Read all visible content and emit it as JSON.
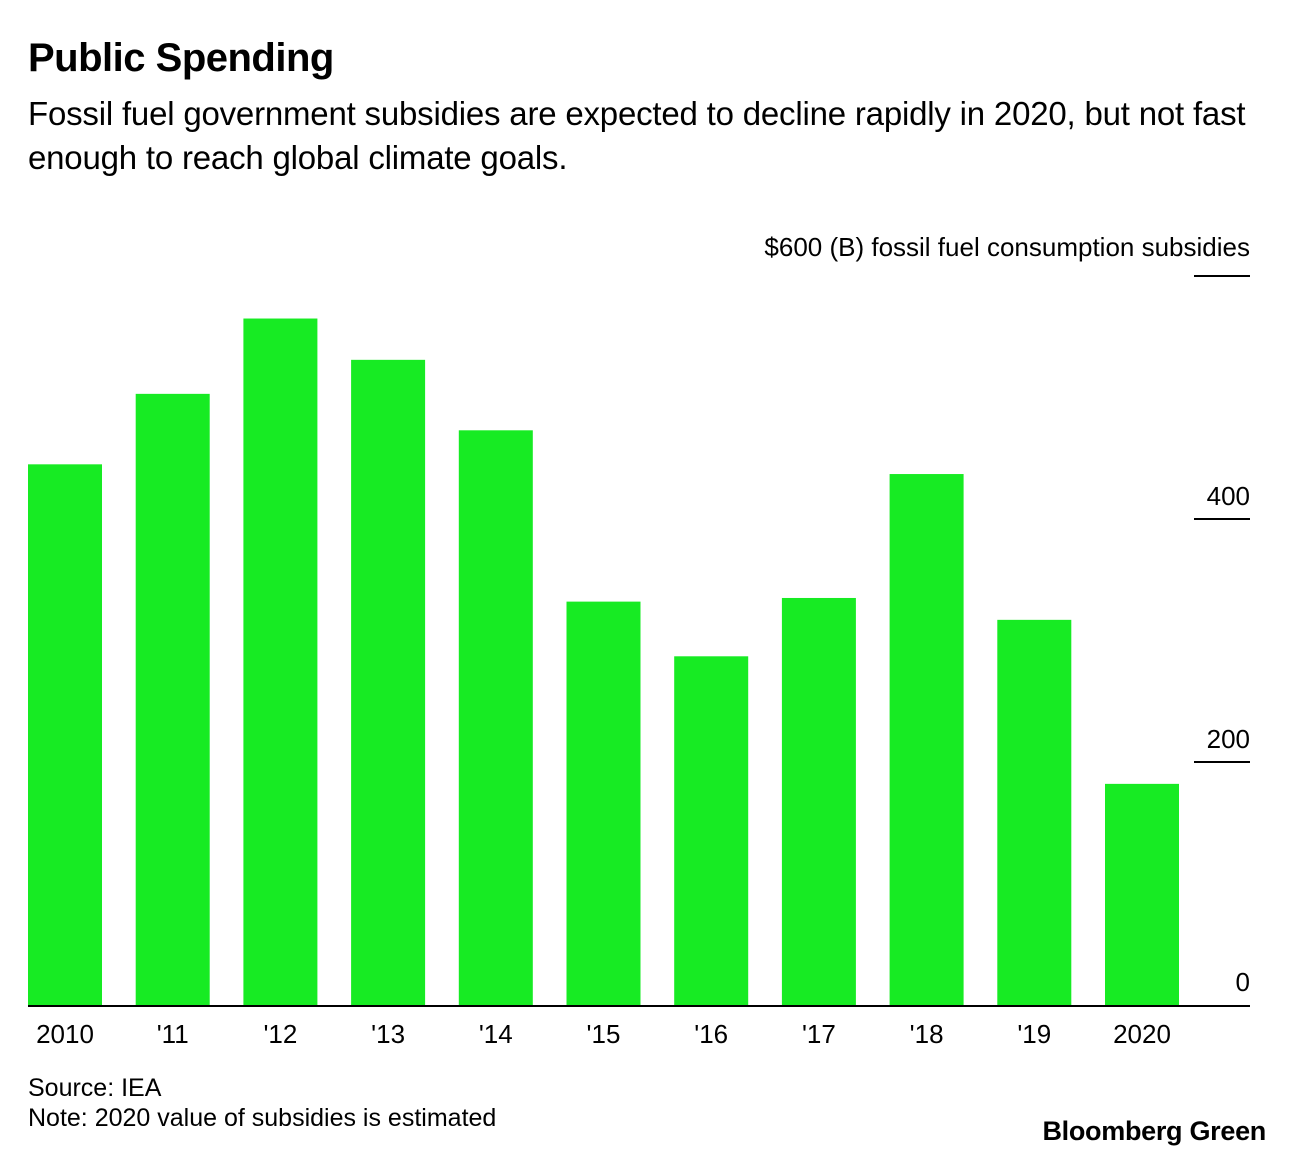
{
  "header": {
    "title": "Public Spending",
    "subtitle": "Fossil fuel government subsidies are expected to decline rapidly in 2020, but not fast enough to reach global climate goals."
  },
  "footer": {
    "source": "Source: IEA",
    "note": "Note: 2020 value of subsidies is estimated",
    "brand": "Bloomberg Green"
  },
  "chart_data": {
    "type": "bar",
    "title": "Public Spending",
    "subtitle": "Fossil fuel government subsidies are expected to decline rapidly in 2020, but not fast enough to reach global climate goals.",
    "xlabel": "",
    "ylabel": "$600 (B) fossil fuel consumption subsidies",
    "unit_label": "$600 (B) fossil fuel consumption subsidies",
    "categories": [
      "2010",
      "'11",
      "'12",
      "'13",
      "'14",
      "'15",
      "'16",
      "'17",
      "'18",
      "'19",
      "2020"
    ],
    "values": [
      445,
      503,
      565,
      531,
      473,
      332,
      287,
      335,
      437,
      317,
      182
    ],
    "ylim": [
      0,
      600
    ],
    "yticks": [
      0,
      200,
      400,
      600
    ],
    "ytick_labels": [
      "0",
      "200",
      "400",
      ""
    ],
    "y_axis_side": "right",
    "grid": false,
    "legend": "none",
    "bar_color": "#17eb23",
    "source": "Source: IEA",
    "note": "Note: 2020 value of subsidies is estimated"
  }
}
